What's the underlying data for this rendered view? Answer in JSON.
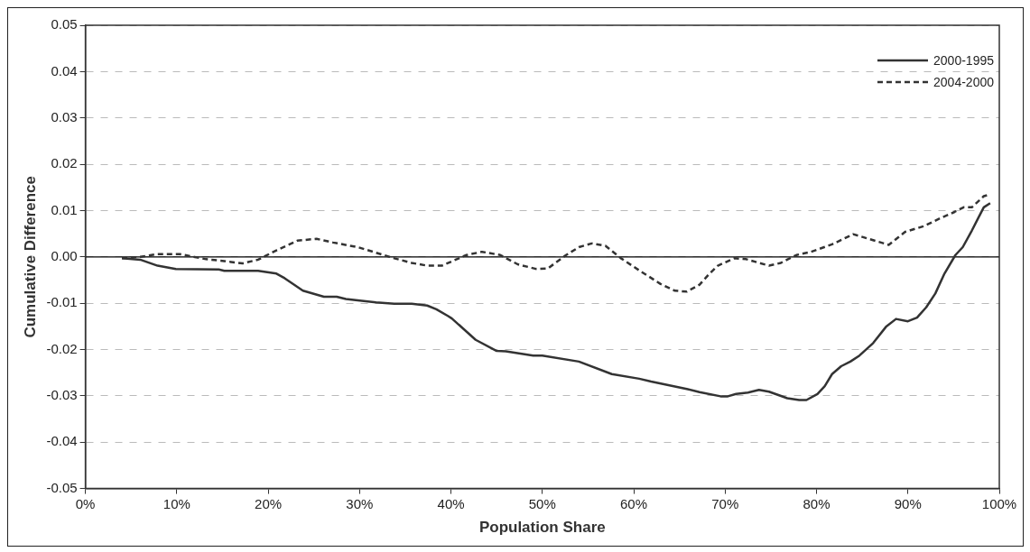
{
  "chart_data": {
    "type": "line",
    "xlabel": "Population Share",
    "ylabel": "Cumulative Difference",
    "xlim": [
      0,
      100
    ],
    "xticks": [
      {
        "value": 0,
        "label": "0%"
      },
      {
        "value": 10,
        "label": "10%"
      },
      {
        "value": 20,
        "label": "20%"
      },
      {
        "value": 30,
        "label": "30%"
      },
      {
        "value": 40,
        "label": "40%"
      },
      {
        "value": 50,
        "label": "50%"
      },
      {
        "value": 60,
        "label": "60%"
      },
      {
        "value": 70,
        "label": "70%"
      },
      {
        "value": 80,
        "label": "80%"
      },
      {
        "value": 90,
        "label": "90%"
      },
      {
        "value": 100,
        "label": "100%"
      }
    ],
    "ylim": [
      -0.05,
      0.05
    ],
    "yticks": [
      {
        "value": -0.05,
        "label": "-0.05"
      },
      {
        "value": -0.04,
        "label": "-0.04"
      },
      {
        "value": -0.03,
        "label": "-0.03"
      },
      {
        "value": -0.02,
        "label": "-0.02"
      },
      {
        "value": -0.01,
        "label": "-0.01"
      },
      {
        "value": 0,
        "label": "0.00"
      },
      {
        "value": 0.01,
        "label": "0.01"
      },
      {
        "value": 0.02,
        "label": "0.02"
      },
      {
        "value": 0.03,
        "label": "0.03"
      },
      {
        "value": 0.04,
        "label": "0.04"
      },
      {
        "value": 0.05,
        "label": "0.05"
      }
    ],
    "grid": "y",
    "legend": "top right",
    "marker": "none",
    "ref_lines": [
      {
        "axis": "y",
        "value": 0,
        "color": "#000000",
        "line_style": "solid"
      }
    ],
    "series": [
      {
        "name": "2000-1995",
        "color": "#333333",
        "line_style": "solid",
        "x": [
          4,
          6,
          7.9,
          9.9,
          14.6,
          15.2,
          18.9,
          20.9,
          21.8,
          23.8,
          26.1,
          27.5,
          28.5,
          29.8,
          31.8,
          33.8,
          35.7,
          37.4,
          38.4,
          39.7,
          40.1,
          42.7,
          45,
          46,
          49,
          50,
          54,
          57.6,
          60.6,
          61.9,
          65.8,
          67.2,
          69.5,
          70.3,
          71.2,
          72.5,
          73.7,
          74.8,
          76.8,
          78.1,
          78.9,
          80.1,
          80.9,
          81.7,
          82.7,
          83.7,
          84.7,
          86.2,
          87.6,
          88.7,
          90,
          91,
          92,
          93,
          94,
          95.2,
          96,
          97,
          97.7,
          98.3,
          99
        ],
        "values": [
          -0.0003,
          -0.0006,
          -0.0019,
          -0.0026,
          -0.0027,
          -0.003,
          -0.003,
          -0.0036,
          -0.0046,
          -0.0073,
          -0.0086,
          -0.0086,
          -0.0091,
          -0.0094,
          -0.0098,
          -0.0101,
          -0.0101,
          -0.0105,
          -0.0113,
          -0.0128,
          -0.0133,
          -0.0179,
          -0.0203,
          -0.0204,
          -0.0213,
          -0.0213,
          -0.0226,
          -0.0253,
          -0.0263,
          -0.0269,
          -0.0285,
          -0.0292,
          -0.0301,
          -0.0301,
          -0.0296,
          -0.0293,
          -0.0287,
          -0.0291,
          -0.0305,
          -0.0309,
          -0.0309,
          -0.0296,
          -0.0279,
          -0.0253,
          -0.0236,
          -0.0226,
          -0.0213,
          -0.0186,
          -0.0151,
          -0.0134,
          -0.0139,
          -0.0131,
          -0.0109,
          -0.0079,
          -0.0036,
          0.0004,
          0.0021,
          0.0057,
          0.0084,
          0.0107,
          0.0116
        ]
      },
      {
        "name": "2004-2000",
        "color": "#333333",
        "line_style": "dashed",
        "x": [
          4,
          6,
          7.9,
          10.3,
          13.2,
          15.2,
          17.2,
          18.9,
          20.9,
          23.2,
          25.3,
          27.1,
          29.8,
          31.8,
          33.8,
          35.7,
          37.4,
          39,
          41.7,
          43.4,
          45.4,
          47.3,
          49.3,
          50.6,
          52.6,
          54,
          55.4,
          56.9,
          58.6,
          60.9,
          62.9,
          64.5,
          65.8,
          67.2,
          68.3,
          69.2,
          71,
          72.3,
          74.8,
          76.1,
          77.8,
          79.4,
          81.7,
          84,
          85.7,
          87.9,
          89.7,
          91.7,
          93.6,
          95.1,
          96.1,
          97,
          98.3,
          99
        ],
        "values": [
          -0.0003,
          0,
          0.0006,
          0.0006,
          -0.0005,
          -0.0009,
          -0.0014,
          -0.0006,
          0.0014,
          0.0035,
          0.0039,
          0.0031,
          0.0021,
          0.0009,
          -0.0003,
          -0.0013,
          -0.0019,
          -0.0019,
          0.0004,
          0.0011,
          0.0004,
          -0.0016,
          -0.0026,
          -0.0025,
          0.0004,
          0.0021,
          0.0029,
          0.0024,
          -0.0003,
          -0.0033,
          -0.0058,
          -0.0073,
          -0.0075,
          -0.006,
          -0.0036,
          -0.0019,
          -0.0003,
          -0.0005,
          -0.0019,
          -0.0013,
          0.0004,
          0.0011,
          0.0027,
          0.0049,
          0.0039,
          0.0026,
          0.0054,
          0.0066,
          0.0084,
          0.0097,
          0.0107,
          0.0107,
          0.0131,
          0.0135
        ]
      }
    ]
  }
}
